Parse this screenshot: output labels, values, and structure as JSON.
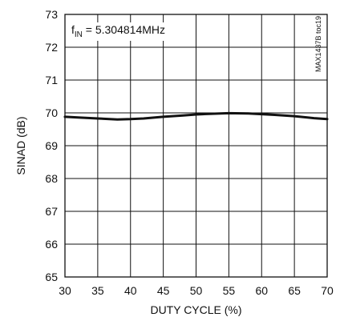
{
  "chart_data": {
    "type": "line",
    "annotation": {
      "main": "f",
      "sub": "IN",
      "rest": " = 5.304814MHz"
    },
    "figure_id": "MAX1437B toc19",
    "xlabel": "DUTY CYCLE (%)",
    "ylabel": "SINAD (dB)",
    "xlim": [
      30,
      70
    ],
    "ylim": [
      65,
      73
    ],
    "xticks": [
      30,
      35,
      40,
      45,
      50,
      55,
      60,
      65,
      70
    ],
    "yticks": [
      65,
      66,
      67,
      68,
      69,
      70,
      71,
      72,
      73
    ],
    "grid": true,
    "series": [
      {
        "color": "#111111",
        "x": [
          30,
          32,
          35,
          38,
          40,
          42,
          45,
          48,
          50,
          52,
          55,
          58,
          60,
          62,
          65,
          68,
          70
        ],
        "y": [
          69.88,
          69.86,
          69.83,
          69.8,
          69.81,
          69.83,
          69.88,
          69.92,
          69.95,
          69.97,
          69.99,
          69.98,
          69.96,
          69.94,
          69.9,
          69.84,
          69.81
        ]
      }
    ]
  }
}
